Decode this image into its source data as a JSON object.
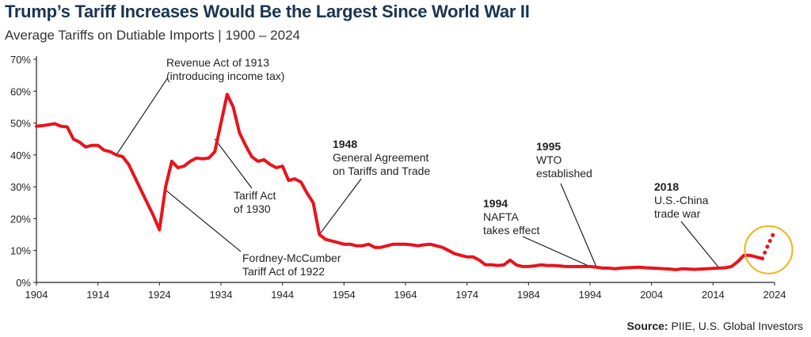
{
  "header": {
    "title": "Trump’s Tariff Increases Would Be the Largest Since World War II",
    "subtitle": "Average Tariffs on Dutiable Imports | 1900 – 2024"
  },
  "footer": {
    "source_label": "Source:",
    "source_text": "PIIE, U.S. Global Investors"
  },
  "colors": {
    "line": "#e8141c",
    "highlight_circle": "#f2b416",
    "axis": "#222222"
  },
  "chart_data": {
    "type": "line",
    "title": "Trump’s Tariff Increases Would Be the Largest Since World War II",
    "subtitle": "Average Tariffs on Dutiable Imports | 1900 – 2024",
    "xlabel": "",
    "ylabel": "",
    "xlim": [
      1904,
      2024
    ],
    "ylim": [
      0,
      70
    ],
    "x_ticks": [
      1904,
      1914,
      1924,
      1934,
      1944,
      1954,
      1964,
      1974,
      1984,
      1994,
      2004,
      2014,
      2024
    ],
    "y_ticks": [
      "0%",
      "10%",
      "20%",
      "30%",
      "40%",
      "50%",
      "60%",
      "70%"
    ],
    "grid": false,
    "series": [
      {
        "style": "solid",
        "points": [
          [
            1904,
            49
          ],
          [
            1905,
            49.2
          ],
          [
            1906,
            49.5
          ],
          [
            1907,
            49.8
          ],
          [
            1908,
            49
          ],
          [
            1909,
            48.8
          ],
          [
            1910,
            45
          ],
          [
            1911,
            44
          ],
          [
            1912,
            42.5
          ],
          [
            1913,
            43
          ],
          [
            1914,
            43
          ],
          [
            1915,
            41.5
          ],
          [
            1916,
            41
          ],
          [
            1917,
            40
          ],
          [
            1918,
            39.5
          ],
          [
            1919,
            37
          ],
          [
            1920,
            33
          ],
          [
            1921,
            29
          ],
          [
            1922,
            25
          ],
          [
            1923,
            21
          ],
          [
            1924,
            16.5
          ],
          [
            1925,
            30
          ],
          [
            1926,
            38
          ],
          [
            1927,
            36
          ],
          [
            1928,
            36.5
          ],
          [
            1929,
            38
          ],
          [
            1930,
            39
          ],
          [
            1931,
            38.8
          ],
          [
            1932,
            39
          ],
          [
            1933,
            41
          ],
          [
            1934,
            50
          ],
          [
            1935,
            59
          ],
          [
            1936,
            55
          ],
          [
            1937,
            47
          ],
          [
            1938,
            43
          ],
          [
            1939,
            39.5
          ],
          [
            1940,
            38
          ],
          [
            1941,
            38.5
          ],
          [
            1942,
            37
          ],
          [
            1943,
            36
          ],
          [
            1944,
            36.5
          ],
          [
            1945,
            32
          ],
          [
            1946,
            32.5
          ],
          [
            1947,
            31.5
          ],
          [
            1948,
            28
          ],
          [
            1949,
            25
          ],
          [
            1950,
            15
          ],
          [
            1951,
            13.5
          ],
          [
            1952,
            13
          ],
          [
            1953,
            12.5
          ],
          [
            1954,
            12
          ],
          [
            1955,
            12
          ],
          [
            1956,
            11.5
          ],
          [
            1957,
            11.5
          ],
          [
            1958,
            12
          ],
          [
            1959,
            11
          ],
          [
            1960,
            11
          ],
          [
            1961,
            11.5
          ],
          [
            1962,
            12
          ],
          [
            1963,
            12
          ],
          [
            1964,
            12
          ],
          [
            1965,
            11.8
          ],
          [
            1966,
            11.5
          ],
          [
            1967,
            11.8
          ],
          [
            1968,
            12
          ],
          [
            1969,
            11.5
          ],
          [
            1970,
            11
          ],
          [
            1971,
            10
          ],
          [
            1972,
            9
          ],
          [
            1973,
            8.5
          ],
          [
            1974,
            8
          ],
          [
            1975,
            8
          ],
          [
            1976,
            7
          ],
          [
            1977,
            5.5
          ],
          [
            1978,
            5.5
          ],
          [
            1979,
            5.3
          ],
          [
            1980,
            5.5
          ],
          [
            1981,
            7
          ],
          [
            1982,
            5.5
          ],
          [
            1983,
            5
          ],
          [
            1984,
            5
          ],
          [
            1985,
            5.2
          ],
          [
            1986,
            5.5
          ],
          [
            1987,
            5.3
          ],
          [
            1988,
            5.3
          ],
          [
            1989,
            5.2
          ],
          [
            1990,
            5
          ],
          [
            1991,
            5
          ],
          [
            1992,
            5
          ],
          [
            1993,
            5
          ],
          [
            1994,
            5
          ],
          [
            1995,
            4.8
          ],
          [
            1996,
            4.5
          ],
          [
            1997,
            4.5
          ],
          [
            1998,
            4.3
          ],
          [
            1999,
            4.5
          ],
          [
            2000,
            4.6
          ],
          [
            2001,
            4.7
          ],
          [
            2002,
            4.8
          ],
          [
            2003,
            4.6
          ],
          [
            2004,
            4.5
          ],
          [
            2005,
            4.4
          ],
          [
            2006,
            4.3
          ],
          [
            2007,
            4.2
          ],
          [
            2008,
            4
          ],
          [
            2009,
            4.3
          ],
          [
            2010,
            4.2
          ],
          [
            2011,
            4.1
          ],
          [
            2012,
            4.2
          ],
          [
            2013,
            4.3
          ],
          [
            2014,
            4.4
          ],
          [
            2015,
            4.5
          ],
          [
            2016,
            4.6
          ],
          [
            2017,
            5
          ],
          [
            2018,
            6.5
          ],
          [
            2019,
            8.5
          ],
          [
            2020,
            8.5
          ],
          [
            2021,
            8
          ],
          [
            2022,
            7.5
          ]
        ]
      },
      {
        "style": "dotted",
        "points": [
          [
            2022,
            7.5
          ],
          [
            2023,
            12
          ],
          [
            2024,
            16
          ]
        ]
      }
    ],
    "annotations": [
      {
        "id": "revenue-act-1913",
        "year_label": "",
        "lines": [
          "Revenue Act of 1913",
          "(introducing income tax)"
        ],
        "x": 1917,
        "y": 40
      },
      {
        "id": "tariff-act-1930",
        "year_label": "",
        "lines": [
          "Tariff Act",
          "of 1930"
        ],
        "x": 1933,
        "y": 45
      },
      {
        "id": "fordney-mccumber-1922",
        "year_label": "",
        "lines": [
          "Fordney-McCumber",
          "Tariff Act of 1922"
        ],
        "x": 1925,
        "y": 29
      },
      {
        "id": "gatt-1948",
        "year_label": "1948",
        "lines": [
          "General Agreement",
          "on Tariffs and Trade"
        ],
        "x": 1950,
        "y": 15
      },
      {
        "id": "nafta-1994",
        "year_label": "1994",
        "lines": [
          "NAFTA",
          "takes effect"
        ],
        "x": 1994,
        "y": 5
      },
      {
        "id": "wto-1995",
        "year_label": "1995",
        "lines": [
          "WTO",
          "established"
        ],
        "x": 1995,
        "y": 5
      },
      {
        "id": "us-china-2018",
        "year_label": "2018",
        "lines": [
          "U.S.-China",
          "trade war"
        ],
        "x": 2015,
        "y": 4.5
      }
    ],
    "highlight": {
      "description": "",
      "center_x": 2022,
      "center_y": 10
    }
  }
}
